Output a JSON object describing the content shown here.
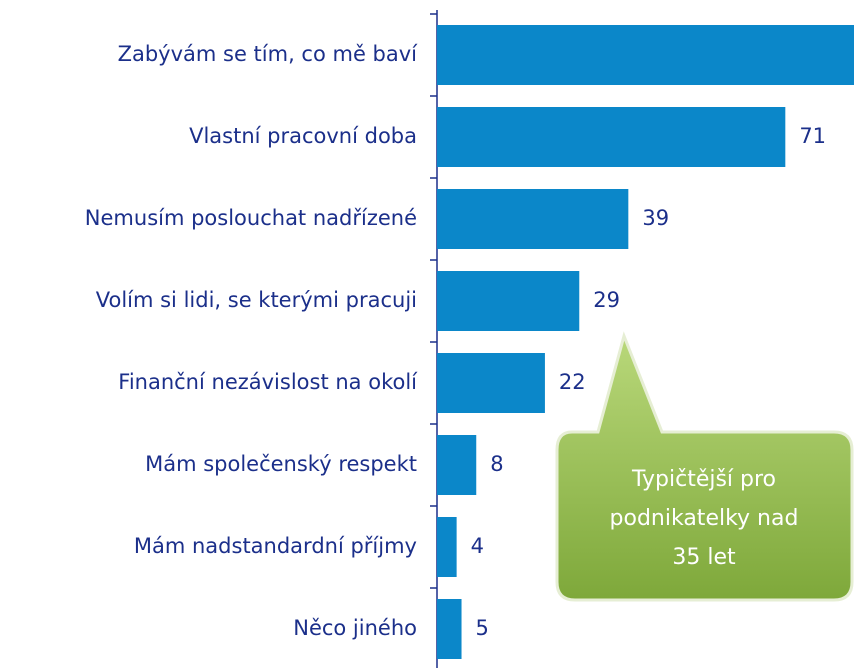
{
  "chart_data": {
    "type": "bar",
    "orientation": "horizontal",
    "categories": [
      "Zabývám se tím, co mě baví",
      "Vlastní pracovní doba",
      "Nemusím poslouchat nadřízené",
      "Volím si lidi, se kterými pracuji",
      "Finanční nezávislost na okolí",
      "Mám společenský respekt",
      "Mám nadstandardní příjmy",
      "Něco jiného"
    ],
    "values": [
      85,
      71,
      39,
      29,
      22,
      8,
      4,
      5
    ],
    "color": "#0b87c9",
    "xlim": [
      0,
      85
    ],
    "annotation": [
      "Typičtější pro",
      "podnikatelky  nad",
      "35 let"
    ]
  }
}
